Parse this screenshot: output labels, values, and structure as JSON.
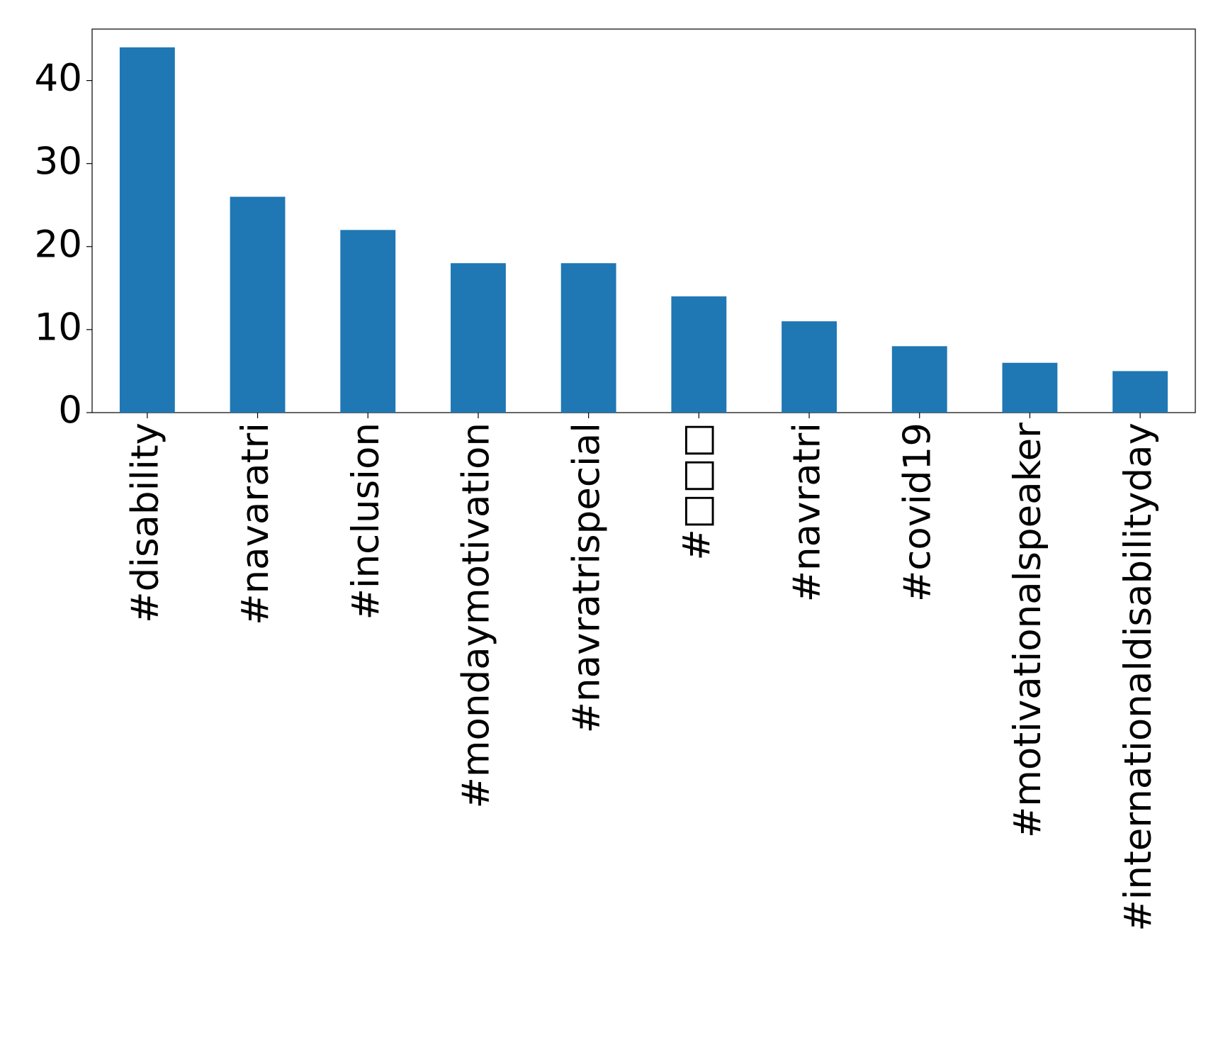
{
  "chart_data": {
    "type": "bar",
    "categories": [
      "#disability",
      "#navaratri",
      "#inclusion",
      "#mondaymotivation",
      "#navratrispecial",
      "#□□□",
      "#navratri",
      "#covid19",
      "#motivationalspeaker",
      "#internationaldisabilityday"
    ],
    "values": [
      44,
      26,
      22,
      18,
      18,
      14,
      11,
      8,
      6,
      5
    ],
    "color": "#1f77b4",
    "ylim": [
      0,
      46.2
    ],
    "yticks": [
      0,
      10,
      20,
      30,
      40
    ],
    "grid": false
  }
}
